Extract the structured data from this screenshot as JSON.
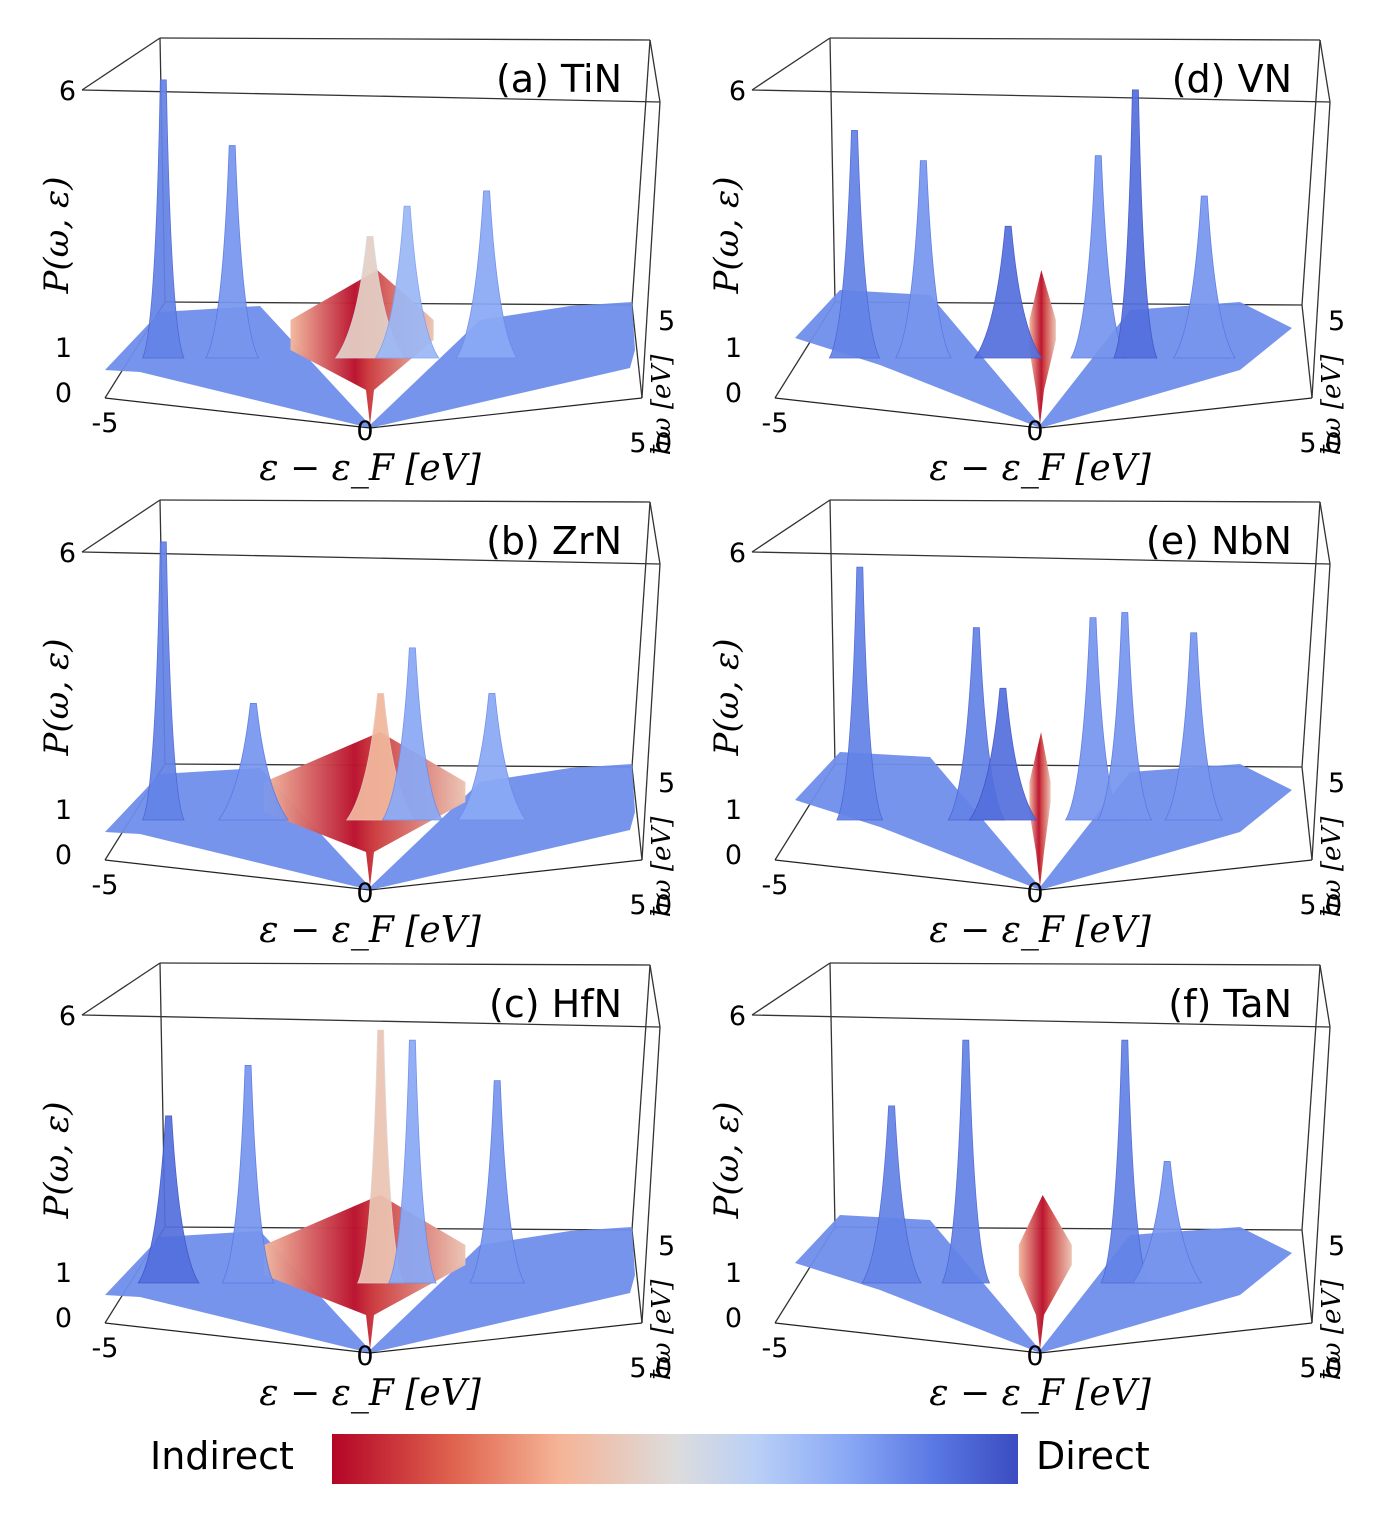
{
  "chart_data": [
    {
      "type": "surface3d",
      "title": "(a) TiN",
      "material": "TiN",
      "xlabel": "ε − ε_F [eV]",
      "ylabel": "P(ω, ε)",
      "zlabel": "ħω [eV]",
      "x_ticks": [
        "-5",
        "0",
        "5"
      ],
      "y_ticks": [
        "0",
        "1",
        "6"
      ],
      "z_ticks": [
        "0",
        "5"
      ],
      "ridges": [
        {
          "x": -3.9,
          "p": 6.3,
          "c": 0.85
        },
        {
          "x": -2.6,
          "p": 5.0,
          "c": 0.8
        },
        {
          "x": 0.0,
          "p": 3.2,
          "c": 0.45
        },
        {
          "x": 0.7,
          "p": 3.8,
          "c": 0.7
        },
        {
          "x": 2.2,
          "p": 4.1,
          "c": 0.75
        }
      ],
      "indirect_region": [
        -1.5,
        1.2
      ]
    },
    {
      "type": "surface3d",
      "title": "(b) ZrN",
      "material": "ZrN",
      "xlabel": "ε − ε_F [eV]",
      "ylabel": "P(ω, ε)",
      "zlabel": "ħω [eV]",
      "x_ticks": [
        "-5",
        "0",
        "5"
      ],
      "y_ticks": [
        "0",
        "1",
        "6"
      ],
      "z_ticks": [
        "0",
        "5"
      ],
      "ridges": [
        {
          "x": -3.9,
          "p": 6.3,
          "c": 0.85
        },
        {
          "x": -2.2,
          "p": 3.1,
          "c": 0.8
        },
        {
          "x": 0.2,
          "p": 3.3,
          "c": 0.35
        },
        {
          "x": 0.8,
          "p": 4.2,
          "c": 0.75
        },
        {
          "x": 2.3,
          "p": 3.3,
          "c": 0.75
        }
      ],
      "indirect_region": [
        -2.0,
        1.8
      ]
    },
    {
      "type": "surface3d",
      "title": "(c) HfN",
      "material": "HfN",
      "xlabel": "ε − ε_F [eV]",
      "ylabel": "P(ω, ε)",
      "zlabel": "ħω [eV]",
      "x_ticks": [
        "-5",
        "0",
        "5"
      ],
      "y_ticks": [
        "0",
        "1",
        "6"
      ],
      "z_ticks": [
        "0",
        "5"
      ],
      "ridges": [
        {
          "x": -3.8,
          "p": 4.1,
          "c": 0.9
        },
        {
          "x": -2.3,
          "p": 5.1,
          "c": 0.8
        },
        {
          "x": 0.2,
          "p": 5.8,
          "c": 0.4
        },
        {
          "x": 0.8,
          "p": 5.6,
          "c": 0.75
        },
        {
          "x": 2.4,
          "p": 4.8,
          "c": 0.8
        }
      ],
      "indirect_region": [
        -2.0,
        1.8
      ]
    },
    {
      "type": "surface3d",
      "title": "(d) VN",
      "material": "VN",
      "xlabel": "ε − ε_F [eV]",
      "ylabel": "P(ω, ε)",
      "zlabel": "ħω [eV]",
      "x_ticks": [
        "-5",
        "0",
        "5"
      ],
      "y_ticks": [
        "0",
        "1",
        "6"
      ],
      "z_ticks": [
        "0",
        "5"
      ],
      "ridges": [
        {
          "x": -3.5,
          "p": 5.3,
          "c": 0.85
        },
        {
          "x": -2.2,
          "p": 4.7,
          "c": 0.8
        },
        {
          "x": -0.6,
          "p": 3.4,
          "c": 0.9
        },
        {
          "x": 1.1,
          "p": 4.8,
          "c": 0.8
        },
        {
          "x": 1.8,
          "p": 6.1,
          "c": 0.9
        },
        {
          "x": 3.1,
          "p": 4.0,
          "c": 0.8
        }
      ],
      "indirect_region": [
        -0.2,
        0.3
      ]
    },
    {
      "type": "surface3d",
      "title": "(e) NbN",
      "material": "NbN",
      "xlabel": "ε − ε_F [eV]",
      "ylabel": "P(ω, ε)",
      "zlabel": "ħω [eV]",
      "x_ticks": [
        "-5",
        "0",
        "5"
      ],
      "y_ticks": [
        "0",
        "1",
        "6"
      ],
      "z_ticks": [
        "0",
        "5"
      ],
      "ridges": [
        {
          "x": -3.4,
          "p": 5.8,
          "c": 0.85
        },
        {
          "x": -1.2,
          "p": 4.6,
          "c": 0.85
        },
        {
          "x": -0.7,
          "p": 3.4,
          "c": 0.9
        },
        {
          "x": 1.0,
          "p": 4.8,
          "c": 0.8
        },
        {
          "x": 1.6,
          "p": 4.9,
          "c": 0.8
        },
        {
          "x": 2.9,
          "p": 4.5,
          "c": 0.8
        }
      ],
      "indirect_region": [
        -0.2,
        0.2
      ]
    },
    {
      "type": "surface3d",
      "title": "(f) TaN",
      "material": "TaN",
      "xlabel": "ε − ε_F [eV]",
      "ylabel": "P(ω, ε)",
      "zlabel": "ħω [eV]",
      "x_ticks": [
        "-5",
        "0",
        "5"
      ],
      "y_ticks": [
        "0",
        "1",
        "6"
      ],
      "z_ticks": [
        "0",
        "5"
      ],
      "ridges": [
        {
          "x": -2.8,
          "p": 4.3,
          "c": 0.85
        },
        {
          "x": -1.4,
          "p": 5.6,
          "c": 0.85
        },
        {
          "x": 1.6,
          "p": 5.6,
          "c": 0.85
        },
        {
          "x": 2.4,
          "p": 3.2,
          "c": 0.8
        }
      ],
      "indirect_region": [
        -0.4,
        0.6
      ]
    }
  ],
  "colorbar": {
    "left_label": "Indirect",
    "right_label": "Direct"
  }
}
